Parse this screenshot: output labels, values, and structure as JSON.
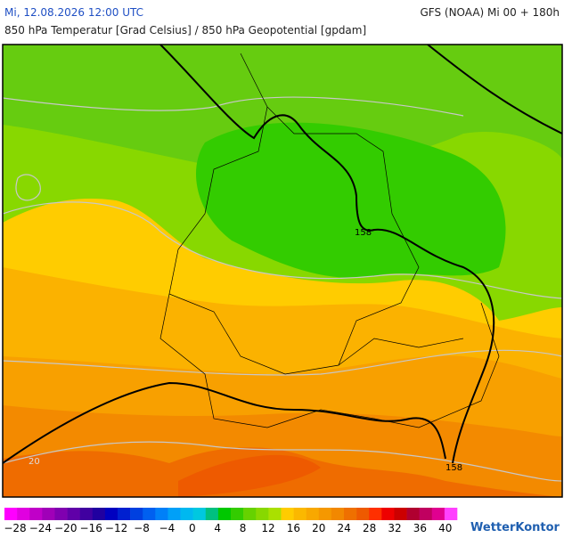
{
  "header": {
    "datetime": "Mi, 12.08.2026 12:00 UTC",
    "model": "GFS (NOAA) Mi 00 + 180h",
    "subtitle": "850 hPa Temperatur [Grad Celsius] / 850 hPa Geopotential [gpdam]"
  },
  "map": {
    "contour_labels": [
      "158",
      "158",
      "20"
    ]
  },
  "colorbar": {
    "labels": [
      "−28",
      "−24",
      "−20",
      "−16",
      "−12",
      "−8",
      "−4",
      "0",
      "4",
      "8",
      "12",
      "16",
      "20",
      "24",
      "28",
      "32",
      "36",
      "40"
    ]
  },
  "logo": "WetterKontor"
}
